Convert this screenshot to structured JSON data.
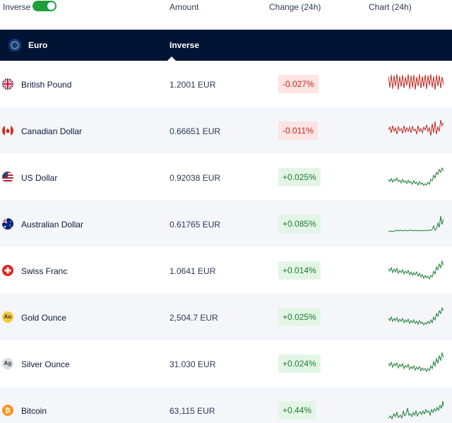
{
  "header": {
    "toggle_label": "Inverse",
    "toggle_on": true,
    "col_amount": "Amount",
    "col_change": "Change (24h)",
    "col_chart": "Chart (24h)"
  },
  "base": {
    "name": "Euro",
    "label": "Inverse"
  },
  "rows": [
    {
      "name": "British Pound",
      "amount": "1.2001 EUR",
      "change": "-0.027%",
      "trend": "negative",
      "icon": "uk-flag-icon"
    },
    {
      "name": "Canadian Dollar",
      "amount": "0.66651 EUR",
      "change": "-0.011%",
      "trend": "negative",
      "icon": "canada-flag-icon"
    },
    {
      "name": "US Dollar",
      "amount": "0.92038 EUR",
      "change": "+0.025%",
      "trend": "positive",
      "icon": "us-flag-icon"
    },
    {
      "name": "Australian Dollar",
      "amount": "0.61765 EUR",
      "change": "+0.085%",
      "trend": "positive",
      "icon": "australia-flag-icon"
    },
    {
      "name": "Swiss Franc",
      "amount": "1.0641 EUR",
      "change": "+0.014%",
      "trend": "positive",
      "icon": "swiss-flag-icon"
    },
    {
      "name": "Gold Ounce",
      "amount": "2,504.7 EUR",
      "change": "+0.025%",
      "trend": "positive",
      "icon": "gold-icon",
      "symbol": "Au"
    },
    {
      "name": "Silver Ounce",
      "amount": "31.030 EUR",
      "change": "+0.024%",
      "trend": "positive",
      "icon": "silver-icon",
      "symbol": "Ag"
    },
    {
      "name": "Bitcoin",
      "amount": "63,115 EUR",
      "change": "+0.44%",
      "trend": "positive",
      "icon": "bitcoin-icon"
    }
  ],
  "colors": {
    "negative": "#c0281e",
    "positive": "#1c7c31",
    "base_bg": "#021433",
    "toggle": "#1e9e3c"
  }
}
